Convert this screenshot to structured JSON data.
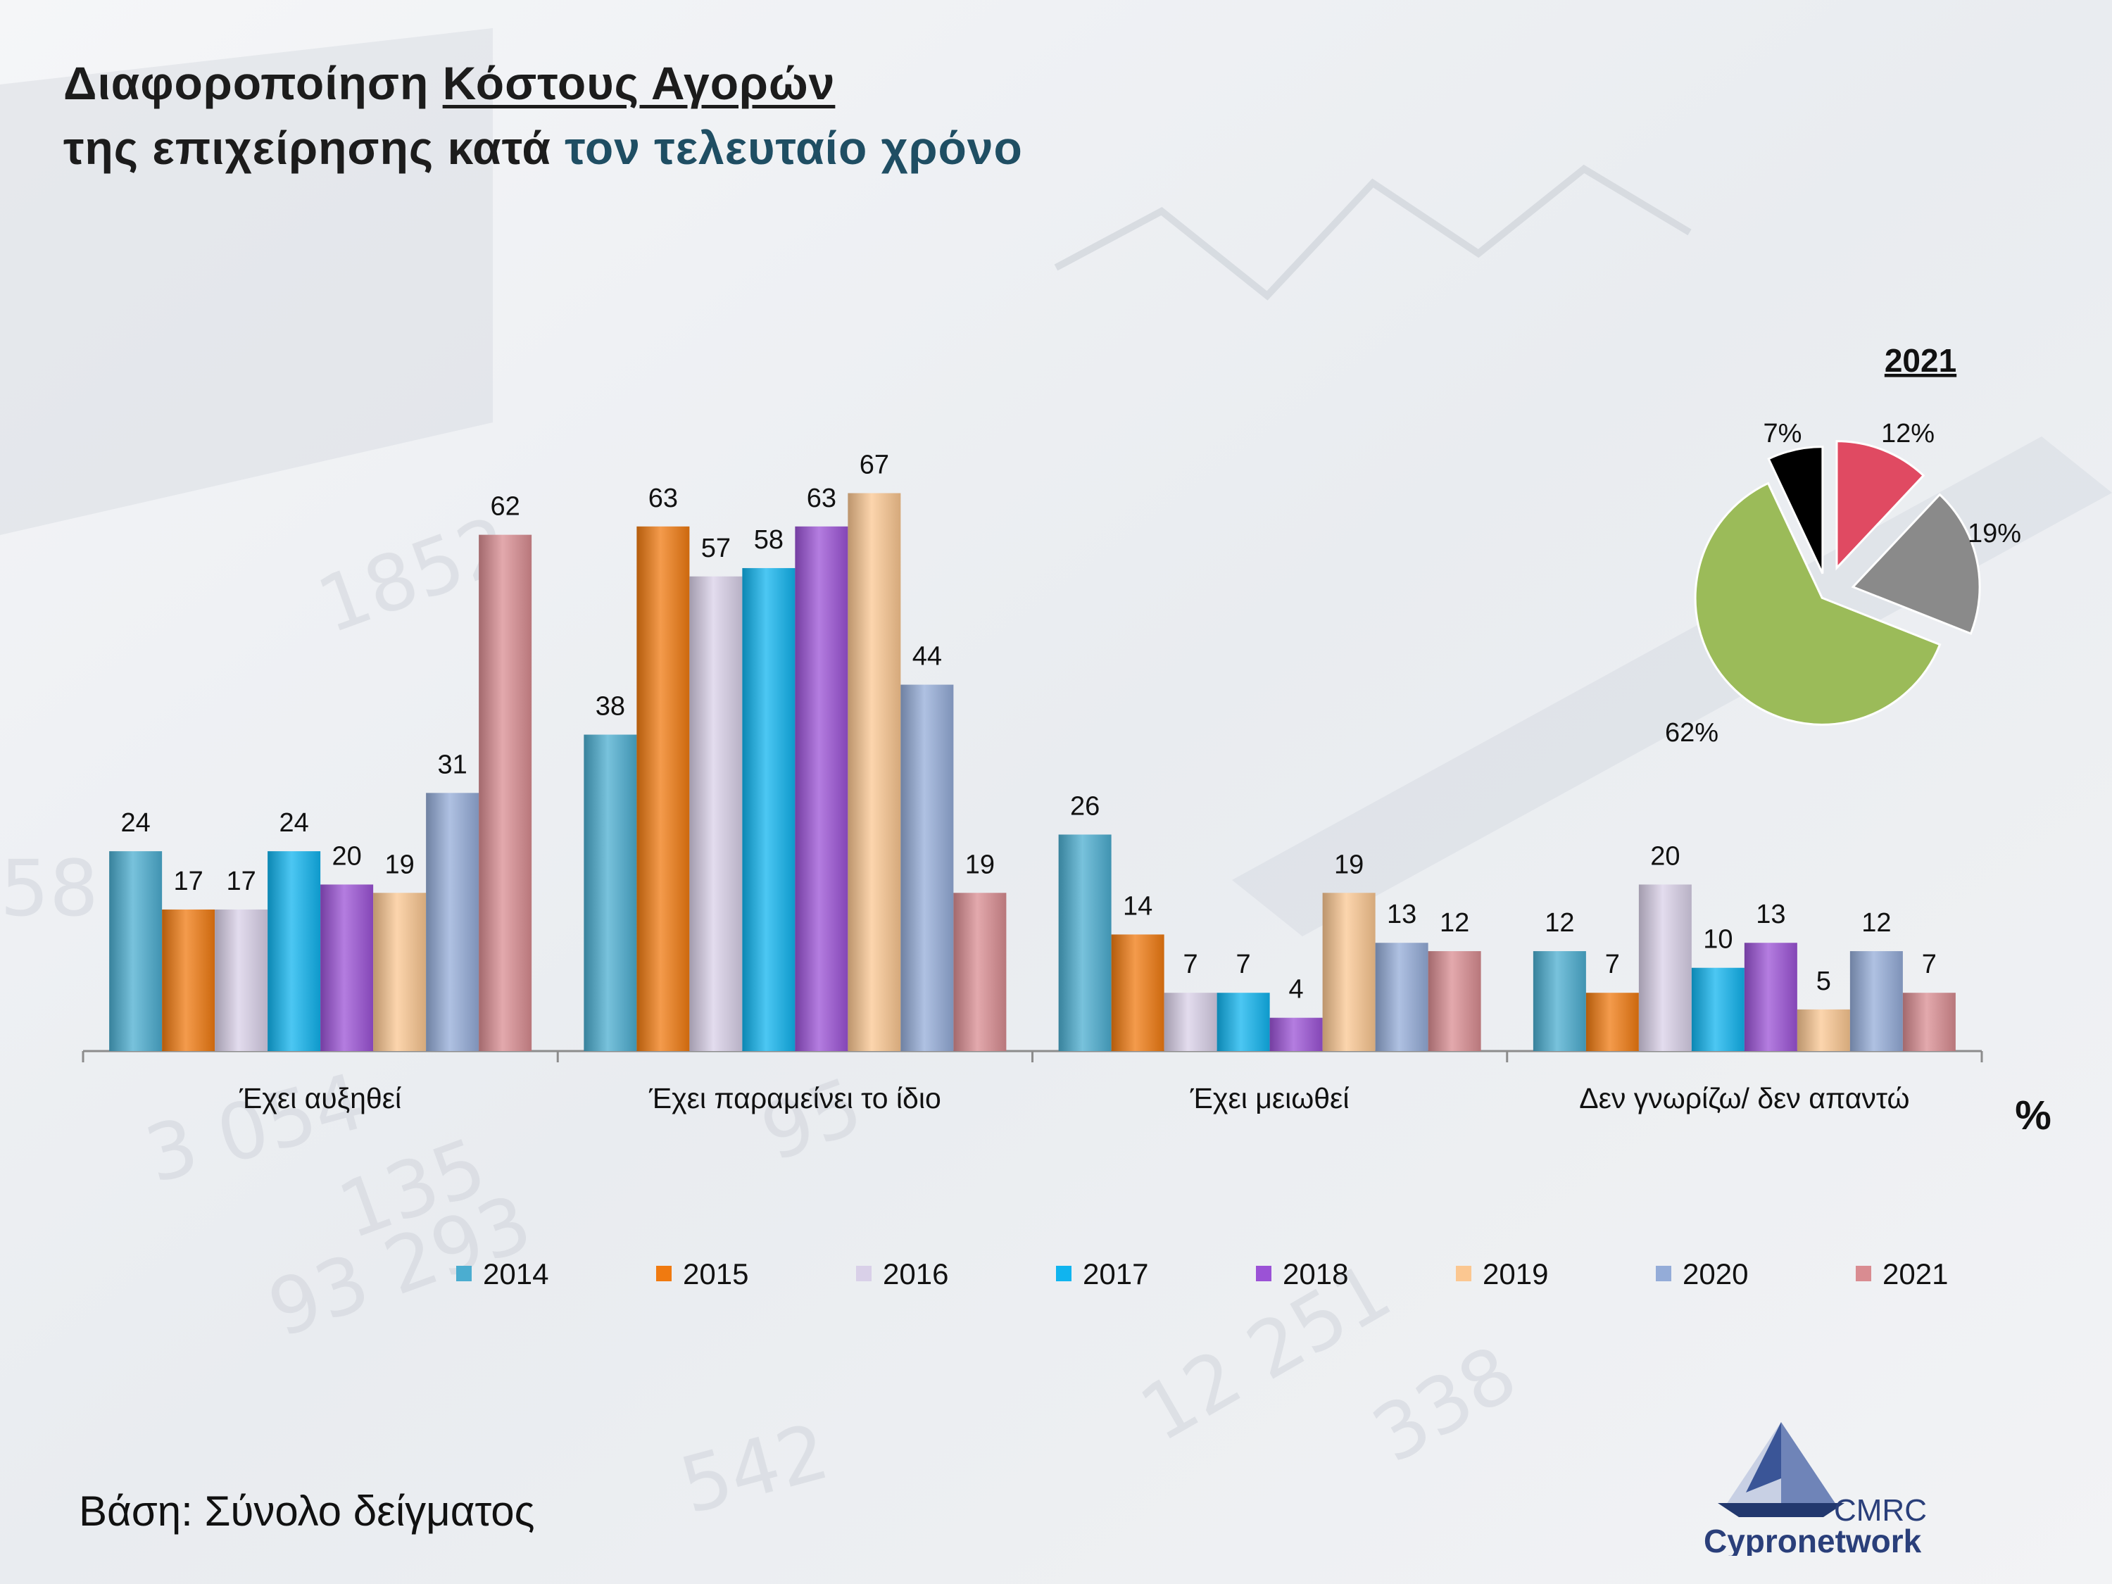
{
  "title": {
    "line1_prefix": "Διαφοροποίηση ",
    "line1_underlined": "Κόστους Αγορών",
    "line2_prefix": "της επιχείρησης κατά ",
    "line2_accent": "τον τελευταίο χρόνο"
  },
  "base_note": "Βάση: Σύνολο δείγματος",
  "logo": {
    "line1": "CMRC",
    "line2": "Cypronetwork"
  },
  "chart_data": [
    {
      "type": "bar",
      "unit_label": "%",
      "categories": [
        "Έχει αυξηθεί",
        "Έχει παραμείνει το ίδιο",
        "Έχει μειωθεί",
        "Δεν γνωρίζω/ δεν απαντώ"
      ],
      "series": [
        {
          "name": "2014",
          "color": "#4badd0",
          "values": [
            24,
            38,
            26,
            12
          ]
        },
        {
          "name": "2015",
          "color": "#f07a10",
          "values": [
            17,
            63,
            14,
            7
          ]
        },
        {
          "name": "2016",
          "color": "#d9d0e8",
          "values": [
            17,
            57,
            7,
            20
          ]
        },
        {
          "name": "2017",
          "color": "#10b4ef",
          "values": [
            24,
            58,
            7,
            10
          ]
        },
        {
          "name": "2018",
          "color": "#9b52d6",
          "values": [
            20,
            63,
            4,
            13
          ]
        },
        {
          "name": "2019",
          "color": "#fbc791",
          "values": [
            19,
            67,
            19,
            5
          ]
        },
        {
          "name": "2020",
          "color": "#94acd8",
          "values": [
            31,
            44,
            13,
            12
          ]
        },
        {
          "name": "2021",
          "color": "#d98c91",
          "values": [
            62,
            19,
            12,
            7
          ]
        }
      ],
      "ylim": [
        0,
        70
      ],
      "grid": false,
      "legend": "bottom"
    },
    {
      "type": "pie",
      "title": "2021",
      "slices": [
        {
          "label": "12%",
          "value": 12,
          "color": "#e04a62"
        },
        {
          "label": "19%",
          "value": 19,
          "color": "#8a8a8a"
        },
        {
          "label": "62%",
          "value": 62,
          "color": "#9bbb59"
        },
        {
          "label": "7%",
          "value": 7,
          "color": "#000000"
        }
      ]
    }
  ]
}
